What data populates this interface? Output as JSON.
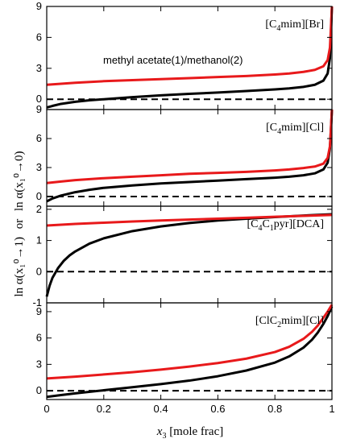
{
  "figure": {
    "xlabel_var": "x",
    "xlabel_sub": "3",
    "xlabel_rest": " [mole frac]",
    "ylabel_upper": "ln α(x₁⁰→0)",
    "ylabel_or": "or",
    "ylabel_lower": "ln α(x₁⁰→1)",
    "annotation": "methyl acetate(1)/methanol(2)"
  },
  "colors": {
    "red": "#e8191b",
    "black": "#000000"
  },
  "chart_data": [
    {
      "type": "line",
      "panel_label": {
        "pre": "[C",
        "sub": "4",
        "post": "mim][Br]"
      },
      "xlim": [
        0,
        1
      ],
      "ylim": [
        -1,
        9
      ],
      "xticks": [
        0,
        0.2,
        0.4,
        0.6,
        0.8,
        1
      ],
      "yticks": [
        0,
        3,
        6,
        9
      ],
      "reference_line": 0,
      "series": [
        {
          "color": "red",
          "x": [
            0,
            0.05,
            0.1,
            0.2,
            0.3,
            0.4,
            0.5,
            0.6,
            0.7,
            0.8,
            0.85,
            0.9,
            0.94,
            0.97,
            0.985,
            0.993,
            1.0
          ],
          "y": [
            1.4,
            1.5,
            1.6,
            1.75,
            1.85,
            1.95,
            2.05,
            2.15,
            2.25,
            2.4,
            2.5,
            2.65,
            2.85,
            3.2,
            3.8,
            5.0,
            9.0
          ]
        },
        {
          "color": "black",
          "x": [
            0,
            0.02,
            0.05,
            0.1,
            0.15,
            0.2,
            0.3,
            0.4,
            0.5,
            0.6,
            0.7,
            0.8,
            0.85,
            0.9,
            0.94,
            0.97,
            0.985,
            0.993,
            1.0
          ],
          "y": [
            -0.8,
            -0.65,
            -0.45,
            -0.25,
            -0.1,
            0.0,
            0.2,
            0.38,
            0.52,
            0.65,
            0.8,
            0.95,
            1.05,
            1.2,
            1.4,
            1.8,
            2.5,
            4.0,
            9.0
          ]
        }
      ]
    },
    {
      "type": "line",
      "panel_label": {
        "pre": "[C",
        "sub": "4",
        "post": "mim][Cl]"
      },
      "xlim": [
        0,
        1
      ],
      "ylim": [
        -1,
        9
      ],
      "xticks": [
        0,
        0.2,
        0.4,
        0.6,
        0.8,
        1
      ],
      "yticks": [
        0,
        3,
        6,
        9
      ],
      "reference_line": 0,
      "series": [
        {
          "color": "red",
          "x": [
            0,
            0.05,
            0.1,
            0.2,
            0.3,
            0.4,
            0.5,
            0.6,
            0.7,
            0.8,
            0.85,
            0.9,
            0.94,
            0.97,
            0.985,
            0.993,
            1.0
          ],
          "y": [
            1.4,
            1.55,
            1.7,
            1.9,
            2.05,
            2.2,
            2.35,
            2.45,
            2.55,
            2.7,
            2.8,
            2.95,
            3.1,
            3.4,
            4.0,
            5.2,
            9.0
          ]
        },
        {
          "color": "black",
          "x": [
            0,
            0.02,
            0.05,
            0.1,
            0.15,
            0.2,
            0.3,
            0.4,
            0.5,
            0.6,
            0.7,
            0.8,
            0.85,
            0.9,
            0.94,
            0.97,
            0.985,
            0.993,
            1.0
          ],
          "y": [
            -0.5,
            -0.2,
            0.1,
            0.45,
            0.7,
            0.9,
            1.15,
            1.35,
            1.5,
            1.65,
            1.8,
            1.95,
            2.05,
            2.2,
            2.4,
            2.8,
            3.5,
            5.0,
            9.0
          ]
        }
      ]
    },
    {
      "type": "line",
      "panel_label": {
        "pre": "[C",
        "sub": "4",
        "mid": "C",
        "sub2": "1",
        "post": "pyr][DCA]"
      },
      "xlim": [
        0,
        1
      ],
      "ylim": [
        -1,
        2.1
      ],
      "xticks": [
        0,
        0.2,
        0.4,
        0.6,
        0.8,
        1
      ],
      "yticks": [
        -1,
        0,
        1,
        2
      ],
      "reference_line": 0,
      "series": [
        {
          "color": "red",
          "x": [
            0,
            0.1,
            0.2,
            0.3,
            0.4,
            0.5,
            0.6,
            0.7,
            0.8,
            0.9,
            1.0
          ],
          "y": [
            1.48,
            1.53,
            1.57,
            1.61,
            1.64,
            1.67,
            1.7,
            1.73,
            1.76,
            1.79,
            1.82
          ]
        },
        {
          "color": "black",
          "x": [
            0,
            0.01,
            0.02,
            0.04,
            0.06,
            0.08,
            0.1,
            0.15,
            0.2,
            0.3,
            0.4,
            0.5,
            0.6,
            0.7,
            0.8,
            0.9,
            1.0
          ],
          "y": [
            -0.8,
            -0.45,
            -0.2,
            0.12,
            0.35,
            0.52,
            0.65,
            0.9,
            1.07,
            1.3,
            1.45,
            1.56,
            1.64,
            1.7,
            1.75,
            1.8,
            1.84
          ]
        }
      ]
    },
    {
      "type": "line",
      "panel_label": {
        "pre": "[ClC",
        "sub": "2",
        "post": "mim][Cl]"
      },
      "xlim": [
        0,
        1
      ],
      "ylim": [
        -1,
        10
      ],
      "xticks": [
        0,
        0.2,
        0.4,
        0.6,
        0.8,
        1
      ],
      "yticks": [
        0,
        3,
        6,
        9
      ],
      "reference_line": 0,
      "series": [
        {
          "color": "red",
          "x": [
            0,
            0.1,
            0.2,
            0.3,
            0.4,
            0.5,
            0.6,
            0.7,
            0.8,
            0.85,
            0.9,
            0.93,
            0.95,
            0.97,
            0.985,
            1.0
          ],
          "y": [
            1.4,
            1.6,
            1.85,
            2.1,
            2.4,
            2.75,
            3.15,
            3.65,
            4.4,
            5.0,
            5.9,
            6.7,
            7.4,
            8.3,
            9.0,
            9.8
          ]
        },
        {
          "color": "black",
          "x": [
            0,
            0.05,
            0.1,
            0.2,
            0.3,
            0.4,
            0.5,
            0.6,
            0.7,
            0.8,
            0.85,
            0.9,
            0.93,
            0.95,
            0.97,
            0.985,
            1.0
          ],
          "y": [
            -0.7,
            -0.5,
            -0.3,
            0.05,
            0.4,
            0.75,
            1.15,
            1.65,
            2.3,
            3.2,
            3.9,
            4.9,
            5.8,
            6.6,
            7.6,
            8.5,
            9.6
          ]
        }
      ]
    }
  ]
}
